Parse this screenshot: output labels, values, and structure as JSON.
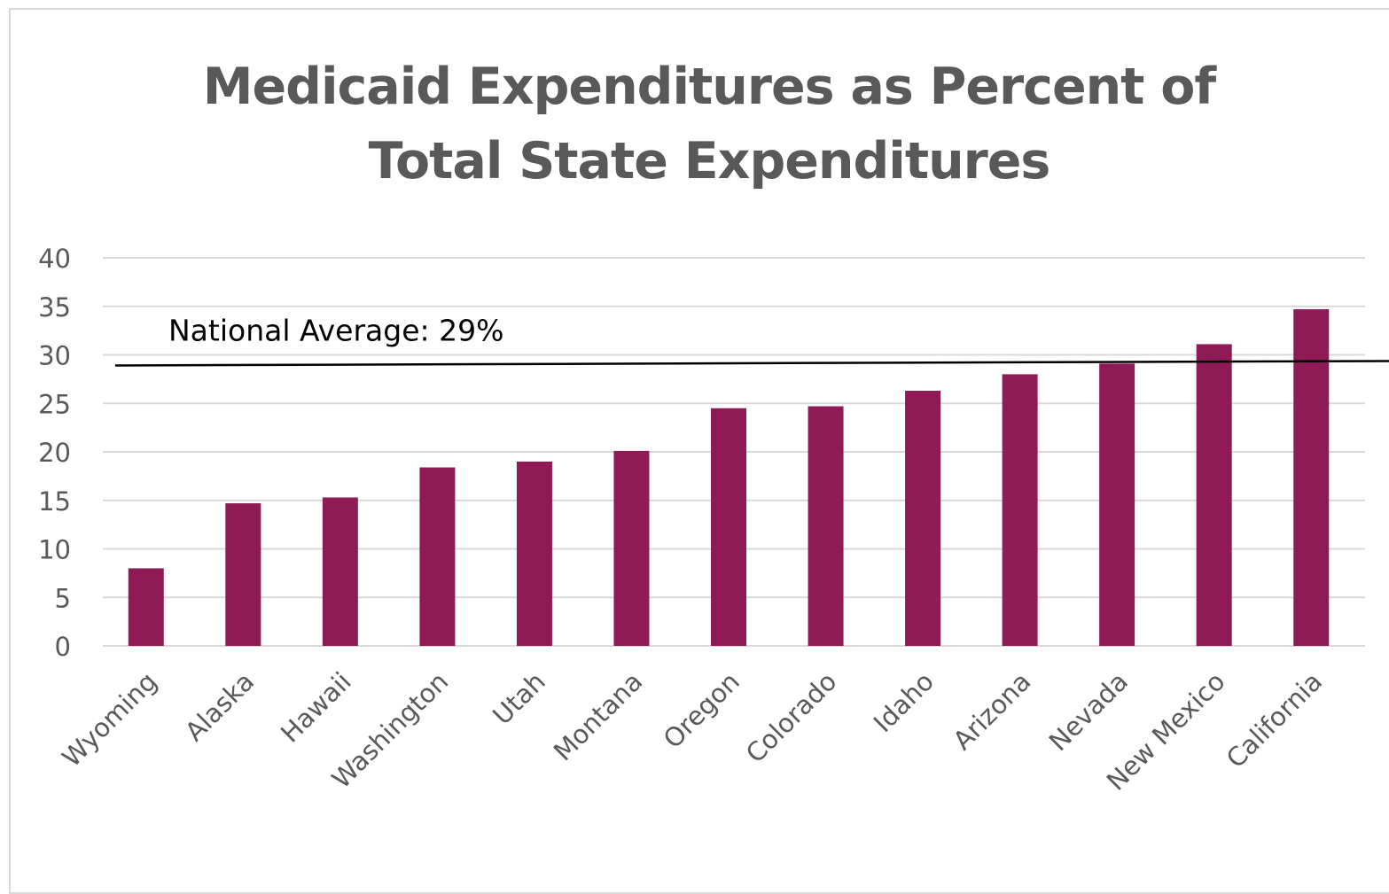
{
  "chart_data": {
    "type": "bar",
    "title_lines": [
      "Medicaid Expenditures as Percent of",
      "Total State Expenditures"
    ],
    "categories": [
      "Wyoming",
      "Alaska",
      "Hawaii",
      "Washington",
      "Utah",
      "Montana",
      "Oregon",
      "Colorado",
      "Idaho",
      "Arizona",
      "Nevada",
      "New Mexico",
      "California"
    ],
    "values": [
      8.0,
      14.7,
      15.3,
      18.4,
      19.0,
      20.1,
      24.5,
      24.7,
      26.3,
      28.0,
      29.1,
      31.1,
      34.7
    ],
    "ylim": [
      0,
      40
    ],
    "yticks": [
      "0",
      "5",
      "10",
      "15",
      "20",
      "25",
      "30",
      "35",
      "40"
    ],
    "grid": true,
    "bar_color": "#8e1b56",
    "reference_line": {
      "value": 29,
      "label": "National Average: 29%"
    }
  }
}
